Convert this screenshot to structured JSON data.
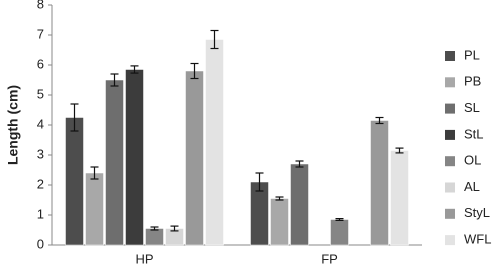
{
  "chart_data": {
    "type": "bar",
    "y_label": "Length (cm)",
    "categories": [
      "HP",
      "FP"
    ],
    "series": [
      {
        "name": "PL",
        "color": "#4d4d4d",
        "values": [
          4.25,
          2.1
        ],
        "errors": [
          0.45,
          0.3
        ]
      },
      {
        "name": "PB",
        "color": "#a8a8a8",
        "values": [
          2.4,
          1.55
        ],
        "errors": [
          0.2,
          0.05
        ]
      },
      {
        "name": "SL",
        "color": "#6e6e6e",
        "values": [
          5.5,
          2.7
        ],
        "errors": [
          0.2,
          0.1
        ]
      },
      {
        "name": "StL",
        "color": "#3c3c3c",
        "values": [
          5.85,
          null
        ],
        "errors": [
          0.12,
          null
        ]
      },
      {
        "name": "OL",
        "color": "#858585",
        "values": [
          0.55,
          0.85
        ],
        "errors": [
          0.05,
          0.03
        ]
      },
      {
        "name": "AL",
        "color": "#d6d6d6",
        "values": [
          0.55,
          null
        ],
        "errors": [
          0.08,
          null
        ]
      },
      {
        "name": "StyL",
        "color": "#999999",
        "values": [
          5.8,
          4.15
        ],
        "errors": [
          0.25,
          0.1
        ]
      },
      {
        "name": "WFL",
        "color": "#e3e3e3",
        "values": [
          6.85,
          3.15
        ],
        "errors": [
          0.3,
          0.08
        ]
      }
    ],
    "ylim": [
      0,
      8
    ],
    "yticks": [
      0,
      1,
      2,
      3,
      4,
      5,
      6,
      7,
      8
    ],
    "grid": false,
    "legend": "right"
  }
}
